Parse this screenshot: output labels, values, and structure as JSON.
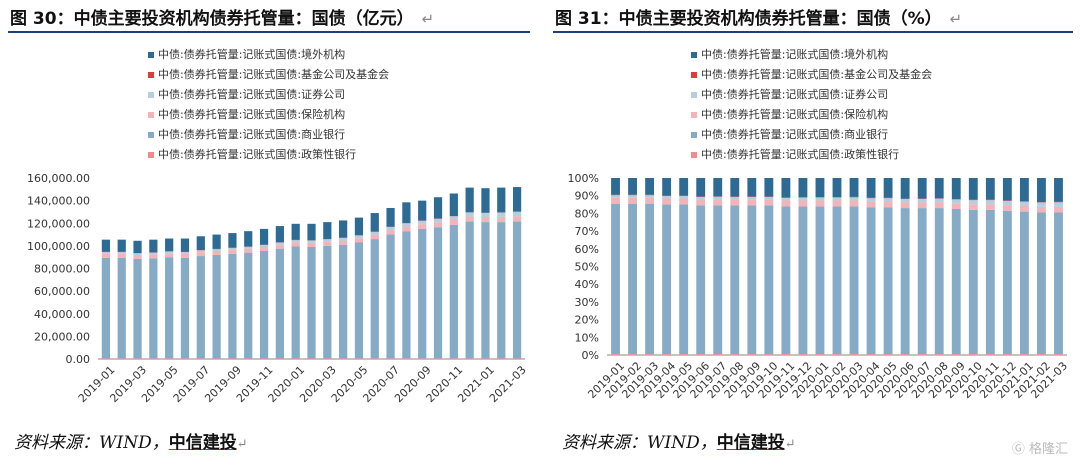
{
  "figures": [
    {
      "title": "图 30：中债主要投资机构债券托管量：国债（亿元）",
      "source_prefix": "资料来源：WIND，",
      "source_link": "中信建投"
    },
    {
      "title": "图 31：中债主要投资机构债券托管量：国债（%）",
      "source_prefix": "资料来源：WIND，",
      "source_link": "中信建投"
    }
  ],
  "watermark": "格隆汇",
  "colors": {
    "境外机构": "#2e6b94",
    "基金公司及基金会": "#e23a3a",
    "证券公司": "#b4cfe0",
    "保险机构": "#f2b4b8",
    "商业银行": "#86abc6",
    "政策性银行": "#f28a8a"
  },
  "chart_data": [
    {
      "type": "bar",
      "stacked": true,
      "legend_position": "top",
      "grid": false,
      "x": [
        "2019-01",
        "2019-02",
        "2019-03",
        "2019-04",
        "2019-05",
        "2019-06",
        "2019-07",
        "2019-08",
        "2019-09",
        "2019-10",
        "2019-11",
        "2019-12",
        "2020-01",
        "2020-02",
        "2020-03",
        "2020-04",
        "2020-05",
        "2020-06",
        "2020-07",
        "2020-08",
        "2020-09",
        "2020-10",
        "2020-11",
        "2020-12",
        "2021-01",
        "2021-02",
        "2021-03"
      ],
      "x_tick_labels": [
        "2019-01",
        "2019-03",
        "2019-05",
        "2019-07",
        "2019-09",
        "2019-11",
        "2020-01",
        "2020-03",
        "2020-05",
        "2020-07",
        "2020-09",
        "2020-11",
        "2021-01",
        "2021-03"
      ],
      "ylim": [
        0,
        160000
      ],
      "y_ticks": [
        0,
        20000,
        40000,
        60000,
        80000,
        100000,
        120000,
        140000,
        160000
      ],
      "y_tick_labels": [
        "0.00",
        "20,000.00",
        "40,000.00",
        "60,000.00",
        "80,000.00",
        "100,000.00",
        "120,000.00",
        "140,000.00",
        "160,000.00"
      ],
      "series": [
        {
          "name": "中债:债券托管量:记账式国债:政策性银行",
          "color_key": "政策性银行",
          "values": [
            500,
            500,
            500,
            500,
            500,
            500,
            500,
            500,
            500,
            500,
            500,
            500,
            500,
            500,
            500,
            500,
            500,
            500,
            500,
            500,
            500,
            500,
            500,
            500,
            500,
            500,
            500
          ]
        },
        {
          "name": "中债:债券托管量:记账式国债:商业银行",
          "color_key": "商业银行",
          "values": [
            89000,
            89000,
            88000,
            88500,
            89500,
            89000,
            90500,
            91500,
            92500,
            93500,
            95000,
            97000,
            99000,
            98500,
            99500,
            100500,
            102500,
            105500,
            109500,
            112500,
            114500,
            116000,
            118000,
            121000,
            120500,
            120500,
            121000
          ]
        },
        {
          "name": "中债:债券托管量:记账式国债:保险机构",
          "color_key": "保险机构",
          "values": [
            3500,
            3500,
            3500,
            3500,
            3500,
            3500,
            3500,
            3500,
            3500,
            3500,
            3500,
            3500,
            3600,
            3600,
            3700,
            3700,
            3800,
            3900,
            4000,
            4100,
            4200,
            4300,
            4400,
            4500,
            4500,
            4600,
            4700
          ]
        },
        {
          "name": "中债:债券托管量:记账式国债:证券公司",
          "color_key": "证券公司",
          "values": [
            1500,
            1500,
            1500,
            1500,
            1500,
            1500,
            1600,
            1600,
            1700,
            1700,
            1800,
            1900,
            2000,
            2100,
            2200,
            2300,
            2400,
            2500,
            2700,
            2900,
            3000,
            3200,
            3300,
            3500,
            3600,
            3800,
            4000
          ]
        },
        {
          "name": "中债:债券托管量:记账式国债:基金公司及基金会",
          "color_key": "基金公司及基金会",
          "values": [
            200,
            200,
            200,
            200,
            200,
            200,
            200,
            200,
            200,
            200,
            200,
            200,
            200,
            200,
            200,
            200,
            200,
            200,
            200,
            200,
            200,
            200,
            200,
            200,
            200,
            200,
            200
          ]
        },
        {
          "name": "中债:债券托管量:记账式国债:境外机构",
          "color_key": "境外机构",
          "values": [
            10800,
            10800,
            10800,
            11300,
            11300,
            11800,
            12200,
            12700,
            12900,
            13600,
            14000,
            14400,
            14200,
            14600,
            14900,
            15300,
            15600,
            16400,
            16600,
            18300,
            17600,
            18800,
            19900,
            21800,
            21700,
            21900,
            21600
          ]
        }
      ]
    },
    {
      "type": "bar",
      "stacked": true,
      "legend_position": "top",
      "grid": false,
      "x": [
        "2019-01",
        "2019-02",
        "2019-03",
        "2019-04",
        "2019-05",
        "2019-06",
        "2019-07",
        "2019-08",
        "2019-09",
        "2019-10",
        "2019-11",
        "2019-12",
        "2020-01",
        "2020-02",
        "2020-03",
        "2020-04",
        "2020-05",
        "2020-06",
        "2020-07",
        "2020-08",
        "2020-09",
        "2020-10",
        "2020-11",
        "2020-12",
        "2021-01",
        "2021-02",
        "2021-03"
      ],
      "x_tick_labels": [
        "2019-01",
        "2019-02",
        "2019-03",
        "2019-04",
        "2019-05",
        "2019-06",
        "2019-07",
        "2019-08",
        "2019-09",
        "2019-10",
        "2019-11",
        "2019-12",
        "2020-01",
        "2020-02",
        "2020-03",
        "2020-04",
        "2020-05",
        "2020-06",
        "2020-07",
        "2020-08",
        "2020-09",
        "2020-10",
        "2020-11",
        "2020-12",
        "2021-01",
        "2021-02",
        "2021-03"
      ],
      "ylim": [
        0,
        100
      ],
      "y_ticks": [
        0,
        10,
        20,
        30,
        40,
        50,
        60,
        70,
        80,
        90,
        100
      ],
      "y_tick_labels": [
        "0%",
        "10%",
        "20%",
        "30%",
        "40%",
        "50%",
        "60%",
        "70%",
        "80%",
        "90%",
        "100%"
      ],
      "series": [
        {
          "name": "中债:债券托管量:记账式国债:政策性银行",
          "color_key": "政策性银行",
          "values": [
            0.5,
            0.5,
            0.5,
            0.5,
            0.5,
            0.5,
            0.5,
            0.5,
            0.5,
            0.5,
            0.5,
            0.5,
            0.5,
            0.5,
            0.5,
            0.5,
            0.5,
            0.5,
            0.5,
            0.5,
            0.5,
            0.5,
            0.5,
            0.5,
            0.5,
            0.5,
            0.5
          ]
        },
        {
          "name": "中债:债券托管量:记账式国债:商业银行",
          "color_key": "商业银行",
          "values": [
            85,
            85,
            85,
            84.5,
            84.5,
            84,
            84,
            84,
            84,
            84,
            83.5,
            83.5,
            83.5,
            83.5,
            83.5,
            83,
            83,
            82.5,
            82.5,
            82.5,
            82,
            81.5,
            81.5,
            81,
            80.5,
            80,
            80
          ]
        },
        {
          "name": "中债:债券托管量:记账式国债:保险机构",
          "color_key": "保险机构",
          "values": [
            3.4,
            3.4,
            3.4,
            3.4,
            3.4,
            3.4,
            3.4,
            3.3,
            3.3,
            3.3,
            3.3,
            3.3,
            3.3,
            3.3,
            3.3,
            3.3,
            3.2,
            3.2,
            3.2,
            3.2,
            3.2,
            3.2,
            3.2,
            3.2,
            3.2,
            3.2,
            3.2
          ]
        },
        {
          "name": "中债:债券托管量:记账式国债:证券公司",
          "color_key": "证券公司",
          "values": [
            1.4,
            1.4,
            1.4,
            1.4,
            1.4,
            1.4,
            1.5,
            1.5,
            1.5,
            1.5,
            1.5,
            1.6,
            1.7,
            1.7,
            1.8,
            1.8,
            1.9,
            1.9,
            2,
            2.1,
            2.2,
            2.3,
            2.3,
            2.4,
            2.4,
            2.5,
            2.6
          ]
        },
        {
          "name": "中债:债券托管量:记账式国债:基金公司及基金会",
          "color_key": "基金公司及基金会",
          "values": [
            0.2,
            0.2,
            0.2,
            0.2,
            0.2,
            0.2,
            0.2,
            0.2,
            0.2,
            0.2,
            0.2,
            0.2,
            0.2,
            0.2,
            0.2,
            0.2,
            0.2,
            0.2,
            0.2,
            0.2,
            0.2,
            0.2,
            0.2,
            0.2,
            0.2,
            0.2,
            0.2
          ]
        },
        {
          "name": "中债:债券托管量:记账式国债:境外机构",
          "color_key": "境外机构",
          "values": [
            9.5,
            9.5,
            9.5,
            10,
            10,
            10.5,
            10.4,
            10.5,
            10.5,
            10.5,
            11,
            10.9,
            10.8,
            10.8,
            10.7,
            11.2,
            11.2,
            11.7,
            11.6,
            11.5,
            11.9,
            12.3,
            12.3,
            12.7,
            13.2,
            13.6,
            13.5
          ]
        }
      ]
    }
  ]
}
